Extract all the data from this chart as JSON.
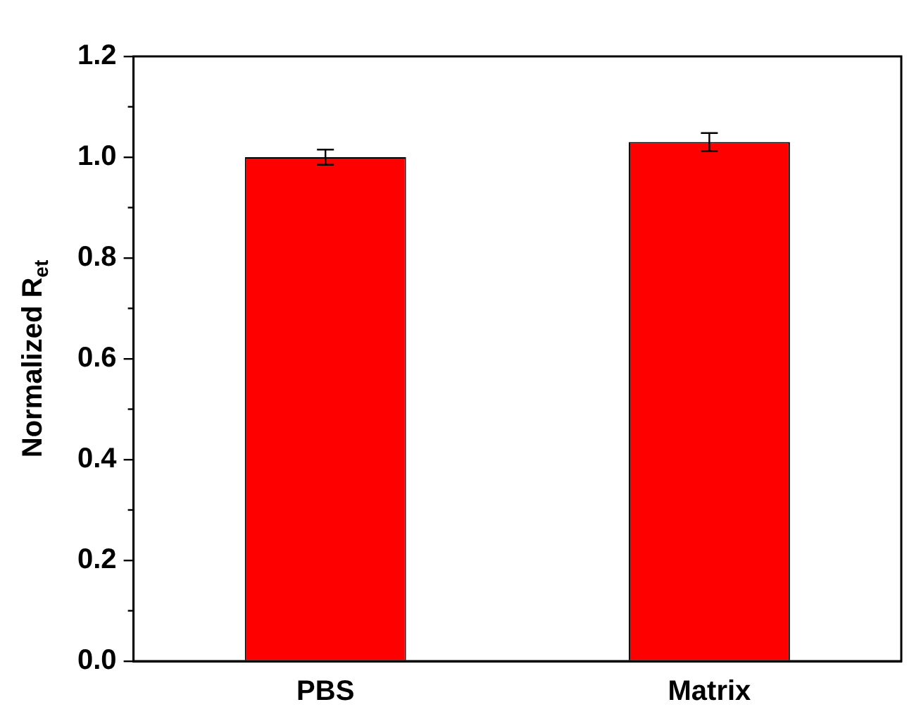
{
  "chart_data": {
    "type": "bar",
    "ylabel": "Normalized R$_{et}$",
    "categories": [
      "PBS",
      "Matrix"
    ],
    "values": [
      1.0,
      1.03
    ],
    "errors": [
      0.015,
      0.018
    ],
    "color": "#ff0000",
    "ylim": [
      0,
      1.2
    ],
    "yticks": [
      {
        "value": 0,
        "label": "0.0"
      },
      0.2,
      0.4,
      0.6,
      0.8,
      {
        "value": 1,
        "label": "1.0"
      },
      {
        "value": 1.2,
        "label": "1.2"
      }
    ],
    "grid": false
  }
}
